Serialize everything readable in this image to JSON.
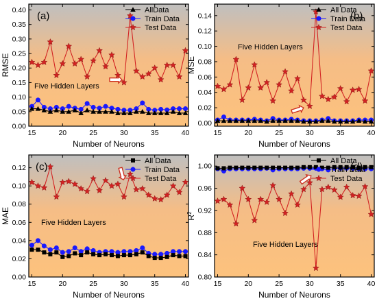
{
  "chart_data": [
    {
      "panel_label": "(a)",
      "type": "line",
      "xlabel": "Number of Neurons",
      "ylabel": "RMSE",
      "annotation": "Five Hidden Layers",
      "xlim": [
        14.5,
        40.5
      ],
      "ylim": [
        0.0,
        0.42
      ],
      "xticks": [
        15,
        20,
        25,
        30,
        35,
        40
      ],
      "yticks": [
        0.0,
        0.05,
        0.1,
        0.15,
        0.2,
        0.25,
        0.3,
        0.35,
        0.4
      ],
      "y_decimals": 2,
      "legend_position": "top-right",
      "x": [
        15,
        16,
        17,
        18,
        19,
        20,
        21,
        22,
        23,
        24,
        25,
        26,
        27,
        28,
        29,
        30,
        31,
        32,
        33,
        34,
        35,
        36,
        37,
        38,
        39,
        40
      ],
      "series": [
        {
          "name": "AllData",
          "marker": "triangle",
          "color": "#000000",
          "values": [
            0.06,
            0.06,
            0.055,
            0.05,
            0.055,
            0.05,
            0.05,
            0.055,
            0.045,
            0.055,
            0.05,
            0.05,
            0.05,
            0.05,
            0.045,
            0.045,
            0.045,
            0.05,
            0.05,
            0.045,
            0.045,
            0.045,
            0.045,
            0.05,
            0.045,
            0.045
          ]
        },
        {
          "name": "Train Data",
          "marker": "circle",
          "color": "#1a1aff",
          "values": [
            0.068,
            0.09,
            0.065,
            0.06,
            0.065,
            0.06,
            0.068,
            0.062,
            0.058,
            0.078,
            0.065,
            0.062,
            0.068,
            0.062,
            0.058,
            0.055,
            0.055,
            0.06,
            0.08,
            0.058,
            0.055,
            0.058,
            0.056,
            0.06,
            0.06,
            0.06
          ]
        },
        {
          "name": "Test Data",
          "marker": "star",
          "color": "#d22222",
          "values": [
            0.22,
            0.21,
            0.22,
            0.29,
            0.175,
            0.215,
            0.275,
            0.215,
            0.23,
            0.17,
            0.225,
            0.26,
            0.205,
            0.245,
            0.175,
            0.15,
            0.38,
            0.19,
            0.17,
            0.18,
            0.2,
            0.16,
            0.21,
            0.21,
            0.17,
            0.26
          ]
        }
      ]
    },
    {
      "panel_label": "(b)",
      "type": "line",
      "xlabel": "Number of Neurons",
      "ylabel": "MSE",
      "annotation": "Five Hidden Layers",
      "xlim": [
        14.5,
        40.5
      ],
      "ylim": [
        -0.004,
        0.155
      ],
      "xticks": [
        15,
        20,
        25,
        30,
        35,
        40
      ],
      "yticks": [
        0.0,
        0.02,
        0.04,
        0.06,
        0.08,
        0.1,
        0.12,
        0.14
      ],
      "y_decimals": 2,
      "legend_position": "top-right",
      "x": [
        15,
        16,
        17,
        18,
        19,
        20,
        21,
        22,
        23,
        24,
        25,
        26,
        27,
        28,
        29,
        30,
        31,
        32,
        33,
        34,
        35,
        36,
        37,
        38,
        39,
        40
      ],
      "series": [
        {
          "name": "All Data",
          "marker": "triangle",
          "color": "#000000",
          "values": [
            0.003,
            0.003,
            0.003,
            0.003,
            0.003,
            0.003,
            0.003,
            0.003,
            0.002,
            0.003,
            0.003,
            0.003,
            0.003,
            0.003,
            0.002,
            0.002,
            0.002,
            0.003,
            0.003,
            0.002,
            0.002,
            0.002,
            0.002,
            0.003,
            0.002,
            0.002
          ]
        },
        {
          "name": "Train Data",
          "marker": "circle",
          "color": "#1a1aff",
          "values": [
            0.004,
            0.008,
            0.004,
            0.004,
            0.004,
            0.004,
            0.005,
            0.004,
            0.003,
            0.006,
            0.004,
            0.004,
            0.005,
            0.004,
            0.003,
            0.003,
            0.003,
            0.004,
            0.006,
            0.003,
            0.003,
            0.003,
            0.003,
            0.004,
            0.004,
            0.004
          ]
        },
        {
          "name": "Test Data",
          "marker": "star",
          "color": "#d22222",
          "values": [
            0.048,
            0.044,
            0.05,
            0.083,
            0.03,
            0.046,
            0.076,
            0.046,
            0.053,
            0.029,
            0.05,
            0.067,
            0.042,
            0.058,
            0.03,
            0.022,
            0.145,
            0.035,
            0.031,
            0.034,
            0.045,
            0.028,
            0.043,
            0.044,
            0.029,
            0.068
          ]
        }
      ]
    },
    {
      "panel_label": "(c)",
      "type": "line",
      "xlabel": "Number of Neurons",
      "ylabel": "MAE",
      "annotation": "Five Hidden Layers",
      "xlim": [
        14.5,
        40.5
      ],
      "ylim": [
        0.0,
        0.134
      ],
      "xticks": [
        15,
        20,
        25,
        30,
        35,
        40
      ],
      "yticks": [
        0.0,
        0.02,
        0.04,
        0.06,
        0.08,
        0.1,
        0.12
      ],
      "y_decimals": 2,
      "legend_position": "top-right",
      "x": [
        15,
        16,
        17,
        18,
        19,
        20,
        21,
        22,
        23,
        24,
        25,
        26,
        27,
        28,
        29,
        30,
        31,
        32,
        33,
        34,
        35,
        36,
        37,
        38,
        39,
        40
      ],
      "series": [
        {
          "name": "All Data",
          "marker": "square",
          "color": "#000000",
          "values": [
            0.03,
            0.03,
            0.027,
            0.025,
            0.027,
            0.022,
            0.023,
            0.026,
            0.024,
            0.027,
            0.025,
            0.024,
            0.025,
            0.024,
            0.023,
            0.024,
            0.024,
            0.025,
            0.027,
            0.023,
            0.021,
            0.021,
            0.022,
            0.024,
            0.023,
            0.023
          ]
        },
        {
          "name": "Train Data",
          "marker": "circle",
          "color": "#1a1aff",
          "values": [
            0.035,
            0.04,
            0.034,
            0.03,
            0.032,
            0.027,
            0.028,
            0.032,
            0.028,
            0.031,
            0.029,
            0.027,
            0.028,
            0.028,
            0.027,
            0.028,
            0.028,
            0.029,
            0.032,
            0.026,
            0.025,
            0.025,
            0.026,
            0.028,
            0.028,
            0.028
          ]
        },
        {
          "name": "Test Data",
          "marker": "star",
          "color": "#d22222",
          "values": [
            0.104,
            0.1,
            0.098,
            0.121,
            0.088,
            0.104,
            0.105,
            0.102,
            0.097,
            0.094,
            0.108,
            0.095,
            0.106,
            0.1,
            0.102,
            0.088,
            0.113,
            0.096,
            0.097,
            0.09,
            0.086,
            0.085,
            0.09,
            0.1,
            0.093,
            0.104
          ]
        }
      ]
    },
    {
      "panel_label": "(d)",
      "type": "line",
      "xlabel": "Number of Neurons",
      "ylabel": "R",
      "ylabel_sup": "2",
      "annotation": "Five Hidden Layers",
      "xlim": [
        14.5,
        40.5
      ],
      "ylim": [
        0.8,
        1.02
      ],
      "xticks": [
        15,
        20,
        25,
        30,
        35,
        40
      ],
      "yticks": [
        0.8,
        0.84,
        0.88,
        0.92,
        0.96,
        1.0
      ],
      "y_decimals": 2,
      "legend_position": "top-right",
      "x": [
        15,
        16,
        17,
        18,
        19,
        20,
        21,
        22,
        23,
        24,
        25,
        26,
        27,
        28,
        29,
        30,
        31,
        32,
        33,
        34,
        35,
        36,
        37,
        38,
        39,
        40
      ],
      "series": [
        {
          "name": "All Data",
          "marker": "square",
          "color": "#000000",
          "values": [
            0.996,
            0.996,
            0.997,
            0.997,
            0.997,
            0.997,
            0.997,
            0.997,
            0.997,
            0.997,
            0.997,
            0.997,
            0.997,
            0.997,
            0.998,
            0.998,
            0.998,
            0.997,
            0.997,
            0.998,
            0.998,
            0.998,
            0.998,
            0.997,
            0.998,
            0.998
          ]
        },
        {
          "name": "Train Data",
          "marker": "circle",
          "color": "#1a1aff",
          "values": [
            0.995,
            0.991,
            0.995,
            0.995,
            0.995,
            0.995,
            0.995,
            0.995,
            0.996,
            0.993,
            0.995,
            0.995,
            0.995,
            0.995,
            0.996,
            0.996,
            0.996,
            0.995,
            0.993,
            0.996,
            0.996,
            0.996,
            0.996,
            0.995,
            0.995,
            0.995
          ]
        },
        {
          "name": "Test Data",
          "marker": "star",
          "color": "#d22222",
          "values": [
            0.937,
            0.94,
            0.93,
            0.896,
            0.96,
            0.94,
            0.902,
            0.94,
            0.935,
            0.965,
            0.94,
            0.915,
            0.95,
            0.93,
            0.958,
            0.97,
            0.816,
            0.958,
            0.962,
            0.957,
            0.944,
            0.962,
            0.947,
            0.946,
            0.963,
            0.913
          ]
        }
      ]
    }
  ]
}
